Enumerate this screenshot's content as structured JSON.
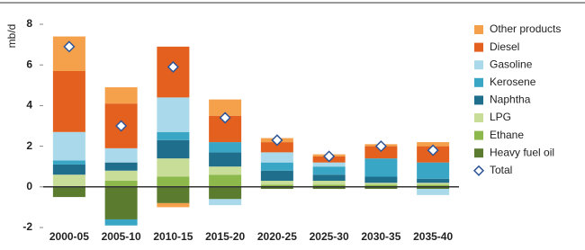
{
  "chart_data": {
    "type": "stacked-bar",
    "y_label": "mb/d",
    "categories": [
      "2000-05",
      "2005-10",
      "2010-15",
      "2015-20",
      "2020-25",
      "2025-30",
      "2030-35",
      "2035-40"
    ],
    "series": [
      {
        "name": "Other products",
        "color": "#f5a04a",
        "values": [
          1.7,
          0.8,
          -0.2,
          0.8,
          0.2,
          0.1,
          0.1,
          0.2
        ]
      },
      {
        "name": "Diesel",
        "color": "#e4601f",
        "values": [
          3.0,
          2.2,
          2.5,
          1.3,
          0.5,
          0.3,
          0.6,
          0.8
        ]
      },
      {
        "name": "Gasoline",
        "color": "#a9d9ea",
        "values": [
          1.4,
          0.7,
          1.7,
          -0.3,
          0.5,
          0.2,
          0,
          -0.3
        ]
      },
      {
        "name": "Kerosene",
        "color": "#3aa6c6",
        "values": [
          0.2,
          -0.3,
          0.4,
          0.5,
          0.4,
          0.4,
          0.9,
          0.8
        ]
      },
      {
        "name": "Naphtha",
        "color": "#1f6e8c",
        "values": [
          0.5,
          0.4,
          0.9,
          0.7,
          0.5,
          0.3,
          0.3,
          0.2
        ]
      },
      {
        "name": "LPG",
        "color": "#c7dd98",
        "values": [
          0.6,
          0.5,
          0.9,
          0.4,
          0.2,
          0.2,
          0.1,
          0.1
        ]
      },
      {
        "name": "Ethane",
        "color": "#8db84b",
        "values": [
          0,
          0.3,
          0.5,
          0.6,
          0.1,
          0.1,
          0.1,
          0.1
        ]
      },
      {
        "name": "Heavy fuel oil",
        "color": "#5b7b2f",
        "values": [
          -0.5,
          -1.6,
          -0.8,
          -0.6,
          -0.1,
          -0.1,
          -0.1,
          -0.1
        ]
      }
    ],
    "total": {
      "name": "Total",
      "color": "#2f5597",
      "values": [
        6.9,
        3.0,
        5.9,
        3.4,
        2.3,
        1.5,
        2.0,
        1.8
      ]
    },
    "ylim": [
      -2,
      8
    ],
    "yticks": [
      -2,
      0,
      2,
      4,
      6,
      8
    ],
    "grid": false,
    "legend": "right"
  }
}
